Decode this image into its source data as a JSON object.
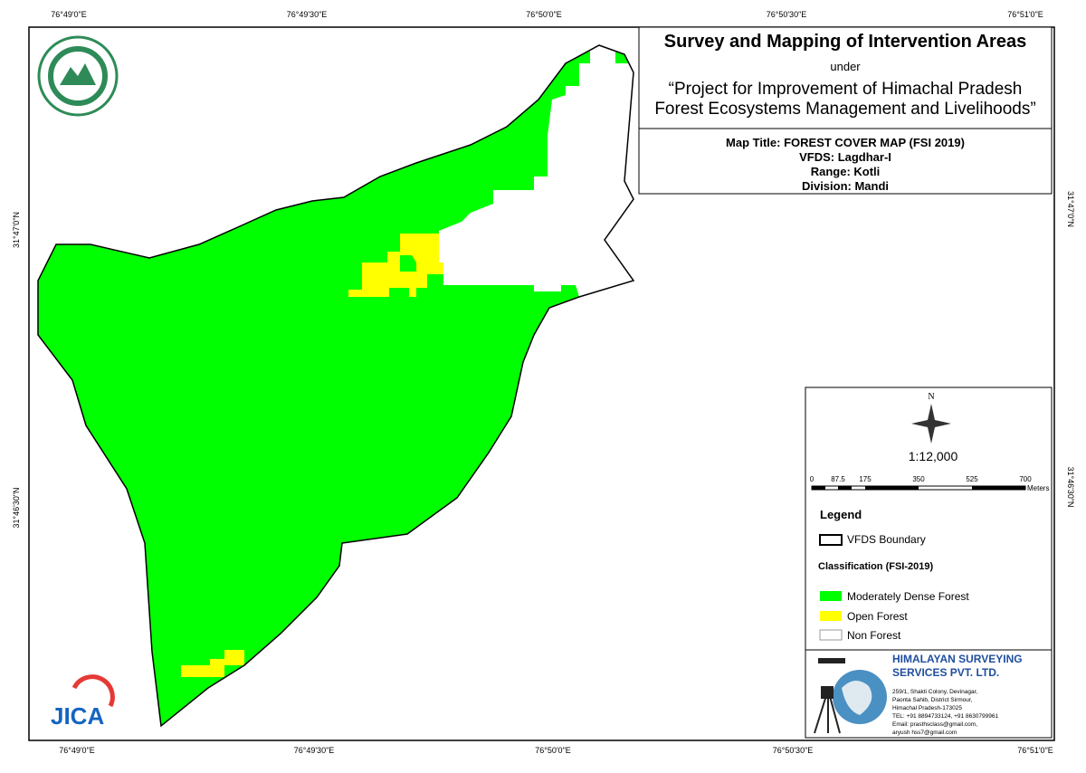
{
  "grid_labels": {
    "top": [
      "76°49'0\"E",
      "76°49'30\"E",
      "76°50'0\"E",
      "76°50'30\"E",
      "76°51'0\"E"
    ],
    "bottom": [
      "76°49'0\"E",
      "76°49'30\"E",
      "76°50'0\"E",
      "76°50'30\"E",
      "76°51'0\"E"
    ],
    "left": [
      "31°47'0\"N",
      "31°46'30\"N"
    ],
    "right": [
      "31°47'0\"N",
      "31°46'30\"N"
    ]
  },
  "header": {
    "title": "Survey and Mapping of Intervention Areas",
    "under": "under",
    "project_line1": "“Project for Improvement of Himachal Pradesh",
    "project_line2": "Forest Ecosystems Management and Livelihoods”"
  },
  "map_info": {
    "map_title": "Map Title: FOREST COVER MAP (FSI 2019)",
    "vfds": "VFDS: Lagdhar-I",
    "range": "Range: Kotli",
    "division": "Division: Mandi"
  },
  "north": "N",
  "scale": "1:12,000",
  "scale_bar": {
    "labels": [
      "0",
      "87.5",
      "175",
      "350",
      "525",
      "700"
    ],
    "unit": "Meters"
  },
  "legend": {
    "title": "Legend",
    "boundary": "VFDS Boundary",
    "classification": "Classification (FSI-2019)",
    "items": [
      "Moderately Dense Forest",
      "Open Forest",
      "Non Forest"
    ]
  },
  "company": {
    "name_line1": "HIMALAYAN SURVEYING",
    "name_line2": "SERVICES PVT. LTD.",
    "address": [
      "259/1, Shakti Colony, Devinagar,",
      "Paonta Sahib, District Sirmour,",
      "Himachal Pradesh-173025",
      "TEL: +91 8894733124, +91 8630799961",
      "Email: prasthsclass@gmail.com,",
      "aryush hss7@gmail.com"
    ]
  },
  "logo": {
    "jica": "JICA"
  }
}
